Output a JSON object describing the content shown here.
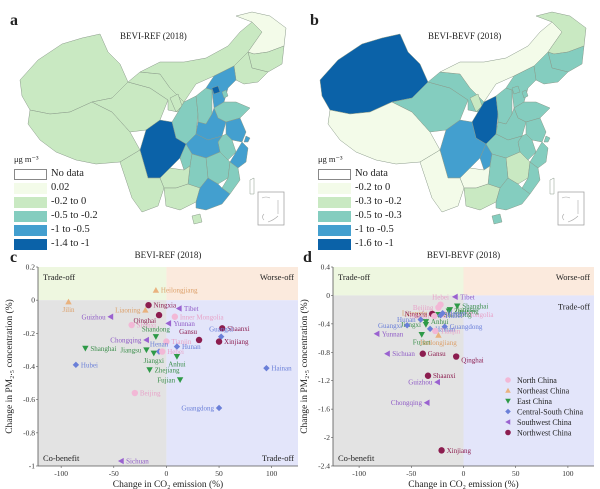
{
  "panels": {
    "a": {
      "letter": "a",
      "title": "BEVI-REF (2018)"
    },
    "b": {
      "letter": "b",
      "title": "BEVI-BEVF (2018)"
    },
    "c": {
      "letter": "c"
    },
    "d": {
      "letter": "d"
    }
  },
  "map_a": {
    "unit": "μg m⁻³",
    "legend": [
      {
        "label": "No data",
        "color": "#ffffff"
      },
      {
        "label": "0.02",
        "color": "#f3fbe9"
      },
      {
        "label": "-0.2 to 0",
        "color": "#c9e9c2"
      },
      {
        "label": "-0.5 to -0.2",
        "color": "#84cdbf"
      },
      {
        "label": "-1 to -0.5",
        "color": "#439fcf"
      },
      {
        "label": "-1.4 to -1",
        "color": "#0b62a8"
      }
    ]
  },
  "map_b": {
    "unit": "μg m⁻³",
    "legend": [
      {
        "label": "No data",
        "color": "#ffffff"
      },
      {
        "label": "-0.2 to 0",
        "color": "#f3fbe9"
      },
      {
        "label": "-0.3 to -0.2",
        "color": "#c9e9c2"
      },
      {
        "label": "-0.5 to -0.3",
        "color": "#84cdbf"
      },
      {
        "label": "-1 to -0.5",
        "color": "#439fcf"
      },
      {
        "label": "-1.6 to -1",
        "color": "#0b62a8"
      }
    ]
  },
  "chart_data": [
    {
      "type": "scatter",
      "title": "BEVI-REF (2018)",
      "xlabel": "Change in CO₂ emission (%)",
      "ylabel": "Change in PM₂.₅ concentration (%)",
      "xlim": [
        -122,
        125
      ],
      "ylim": [
        -1,
        0.2
      ],
      "xticks": [
        -100,
        -50,
        0,
        50,
        100
      ],
      "yticks": [
        0.2,
        0,
        -0.2,
        -0.4,
        -0.6,
        -0.8,
        -1
      ],
      "ytick_labels": [
        "0.2",
        "0",
        "-0.2",
        "-0.4",
        "-0.6",
        "-0.8",
        "-1"
      ],
      "quadrants": {
        "top_left": "Trade-off",
        "top_right": "Worse-off",
        "bottom_left": "Co-benefit",
        "bottom_right": "Trade-off"
      },
      "points": [
        {
          "name": "Heilongjiang",
          "region": "Northeast China",
          "x": -10,
          "y": 0.06,
          "label_side": "right"
        },
        {
          "name": "Jilin",
          "region": "Northeast China",
          "x": -93,
          "y": -0.01,
          "label_side": "below"
        },
        {
          "name": "Liaoning",
          "region": "Northeast China",
          "x": -20,
          "y": -0.06,
          "label_side": "left"
        },
        {
          "name": "Ningxia",
          "region": "Northwest China",
          "x": -17,
          "y": -0.03,
          "label_side": "right"
        },
        {
          "name": "Qinghai",
          "region": "Northwest China",
          "x": -7,
          "y": -0.09,
          "label_side": "left-below"
        },
        {
          "name": "Tibet",
          "region": "Southwest China",
          "x": 12,
          "y": -0.05,
          "label_side": "right"
        },
        {
          "name": "Inner Mongolia",
          "region": "North China",
          "x": 8,
          "y": -0.1,
          "label_side": "right"
        },
        {
          "name": "Guizhou",
          "region": "Southwest China",
          "x": -53,
          "y": -0.1,
          "label_side": "left"
        },
        {
          "name": "Yunnan",
          "region": "Southwest China",
          "x": 2,
          "y": -0.14,
          "label_side": "right"
        },
        {
          "name": "Shanxi",
          "region": "North China",
          "x": -33,
          "y": -0.15,
          "label_side": "right"
        },
        {
          "name": "Shaanxi",
          "region": "Northwest China",
          "x": 53,
          "y": -0.17,
          "label_side": "right"
        },
        {
          "name": "Shandong",
          "region": "East China",
          "x": -10,
          "y": -0.22,
          "label_side": "above"
        },
        {
          "name": "Gansu",
          "region": "Northwest China",
          "x": 31,
          "y": -0.24,
          "label_side": "above-left"
        },
        {
          "name": "Guangxi",
          "region": "Central-South China",
          "x": 52,
          "y": -0.22,
          "label_side": "above"
        },
        {
          "name": "Chongqing",
          "region": "Southwest China",
          "x": -19,
          "y": -0.24,
          "label_side": "left"
        },
        {
          "name": "Xinjiang",
          "region": "Northwest China",
          "x": 50,
          "y": -0.25,
          "label_side": "right"
        },
        {
          "name": "Tianjin",
          "region": "North China",
          "x": 0,
          "y": -0.25,
          "label_side": "right"
        },
        {
          "name": "Henan",
          "region": "Central-South China",
          "x": -7,
          "y": -0.31,
          "label_side": "above"
        },
        {
          "name": "Hunan",
          "region": "Central-South China",
          "x": 10,
          "y": -0.28,
          "label_side": "right"
        },
        {
          "name": "Shanghai",
          "region": "East China",
          "x": -77,
          "y": -0.29,
          "label_side": "right"
        },
        {
          "name": "Jiangsu",
          "region": "East China",
          "x": -19,
          "y": -0.3,
          "label_side": "left"
        },
        {
          "name": "Jiangxi",
          "region": "East China",
          "x": -12,
          "y": -0.32,
          "label_side": "below"
        },
        {
          "name": "Hebei",
          "region": "North China",
          "x": -4,
          "y": -0.31,
          "label_side": "right"
        },
        {
          "name": "Anhui",
          "region": "East China",
          "x": 10,
          "y": -0.34,
          "label_side": "below"
        },
        {
          "name": "Hubei",
          "region": "Central-South China",
          "x": -86,
          "y": -0.39,
          "label_side": "right"
        },
        {
          "name": "Hainan",
          "region": "Central-South China",
          "x": 95,
          "y": -0.41,
          "label_side": "right"
        },
        {
          "name": "Zhejiang",
          "region": "East China",
          "x": -16,
          "y": -0.42,
          "label_side": "right"
        },
        {
          "name": "Fujian",
          "region": "East China",
          "x": 13,
          "y": -0.48,
          "label_side": "left"
        },
        {
          "name": "Beijing",
          "region": "North China",
          "x": -30,
          "y": -0.56,
          "label_side": "right"
        },
        {
          "name": "Guangdong",
          "region": "Central-South China",
          "x": 50,
          "y": -0.65,
          "label_side": "left"
        },
        {
          "name": "Sichuan",
          "region": "Southwest China",
          "x": -43,
          "y": -0.97,
          "label_side": "right"
        }
      ]
    },
    {
      "type": "scatter",
      "title": "BEVI-BEVF (2018)",
      "xlabel": "Change in CO₂ emission (%)",
      "ylabel": "Change in PM₂.₅ concentration (%)",
      "xlim": [
        -125,
        125
      ],
      "ylim": [
        -2.4,
        0.4
      ],
      "xticks": [
        -100,
        -50,
        0,
        50,
        100
      ],
      "yticks": [
        0.4,
        0,
        -0.4,
        -0.8,
        -1.2,
        -1.6,
        -2,
        -2.4
      ],
      "ytick_labels": [
        "0.4",
        "0",
        "-0.4",
        "-0.8",
        "-1.2",
        "-1.6",
        "-2",
        "-2.4"
      ],
      "quadrants": {
        "top_left": "Trade-off",
        "top_right": "Worse-off",
        "bottom_left": "Co-benefit",
        "bottom_right": "Trade-off"
      },
      "legend_position": "bottom-right",
      "points": [
        {
          "name": "Tibet",
          "region": "Southwest China",
          "x": -8,
          "y": -0.02,
          "label_side": "right"
        },
        {
          "name": "Hebei",
          "region": "North China",
          "x": -22,
          "y": -0.13,
          "label_side": "above"
        },
        {
          "name": "Shanghai",
          "region": "East China",
          "x": -6,
          "y": -0.15,
          "label_side": "right"
        },
        {
          "name": "Beijing",
          "region": "North China",
          "x": -24,
          "y": -0.17,
          "label_side": "left"
        },
        {
          "name": "Jiangsu",
          "region": "East China",
          "x": -13,
          "y": -0.2,
          "label_side": "right"
        },
        {
          "name": "Zhejiang",
          "region": "East China",
          "x": -14,
          "y": -0.22,
          "label_side": "right"
        },
        {
          "name": "Liaoning",
          "region": "Northeast China",
          "x": -30,
          "y": -0.25,
          "label_side": "left"
        },
        {
          "name": "Ningxia",
          "region": "Northwest China",
          "x": -30,
          "y": -0.26,
          "label_side": "left"
        },
        {
          "name": "Inner Mongolia",
          "region": "North China",
          "x": -18,
          "y": -0.27,
          "label_side": "right"
        },
        {
          "name": "Shandong",
          "region": "East China",
          "x": -24,
          "y": -0.27,
          "label_side": "right"
        },
        {
          "name": "Henan",
          "region": "Central-South China",
          "x": -20,
          "y": -0.25,
          "label_side": "right"
        },
        {
          "name": "Hubei",
          "region": "Central-South China",
          "x": -22,
          "y": -0.28,
          "label_side": "right"
        },
        {
          "name": "Shanxi",
          "region": "North China",
          "x": -28,
          "y": -0.29,
          "label_side": "left"
        },
        {
          "name": "Hunan",
          "region": "Central-South China",
          "x": -41,
          "y": -0.34,
          "label_side": "left"
        },
        {
          "name": "Anhui",
          "region": "East China",
          "x": -36,
          "y": -0.37,
          "label_side": "right"
        },
        {
          "name": "Jiangxi",
          "region": "East China",
          "x": -36,
          "y": -0.41,
          "label_side": "left"
        },
        {
          "name": "Guangxi",
          "region": "Central-South China",
          "x": -54,
          "y": -0.42,
          "label_side": "left"
        },
        {
          "name": "Guangdong",
          "region": "Central-South China",
          "x": -18,
          "y": -0.44,
          "label_side": "right"
        },
        {
          "name": "Hainan",
          "region": "Central-South China",
          "x": -32,
          "y": -0.47,
          "label_side": "right"
        },
        {
          "name": "Tianjin",
          "region": "North China",
          "x": -27,
          "y": -0.5,
          "label_side": "right"
        },
        {
          "name": "Yunnan",
          "region": "Southwest China",
          "x": -83,
          "y": -0.54,
          "label_side": "right"
        },
        {
          "name": "Fujian",
          "region": "East China",
          "x": -40,
          "y": -0.55,
          "label_side": "below"
        },
        {
          "name": "Heilongjiang",
          "region": "Northeast China",
          "x": -24,
          "y": -0.56,
          "label_side": "below"
        },
        {
          "name": "Sichuan",
          "region": "Southwest China",
          "x": -73,
          "y": -0.82,
          "label_side": "right"
        },
        {
          "name": "Gansu",
          "region": "Northwest China",
          "x": -39,
          "y": -0.82,
          "label_side": "right"
        },
        {
          "name": "Qinghai",
          "region": "Northwest China",
          "x": -7,
          "y": -0.86,
          "label_side": "right-below"
        },
        {
          "name": "Shaanxi",
          "region": "Northwest China",
          "x": -34,
          "y": -1.13,
          "label_side": "right"
        },
        {
          "name": "Guizhou",
          "region": "Southwest China",
          "x": -25,
          "y": -1.22,
          "label_side": "left"
        },
        {
          "name": "Chongqing",
          "region": "Southwest China",
          "x": -35,
          "y": -1.51,
          "label_side": "left"
        },
        {
          "name": "Xinjiang",
          "region": "Northwest China",
          "x": -21,
          "y": -2.18,
          "label_side": "right"
        }
      ]
    }
  ],
  "regions": [
    {
      "name": "North China",
      "marker": "circle",
      "color": "#f2b8d6",
      "label_color": "#e7a3c8"
    },
    {
      "name": "Northeast China",
      "marker": "triangle-up",
      "color": "#e9b27e",
      "label_color": "#dca06a"
    },
    {
      "name": "East China",
      "marker": "triangle-down",
      "color": "#2e9a47",
      "label_color": "#3c8f4c"
    },
    {
      "name": "Central-South China",
      "marker": "diamond",
      "color": "#6a7fd8",
      "label_color": "#6a7fd8"
    },
    {
      "name": "Southwest China",
      "marker": "triangle-left",
      "color": "#9a62d0",
      "label_color": "#8f5bc6"
    },
    {
      "name": "Northwest China",
      "marker": "circle",
      "color": "#8c1d4f",
      "label_color": "#8c1d4f"
    }
  ],
  "quadrant_colors": {
    "top_left": "#eef7e0",
    "top_right": "#fbeadd",
    "bottom_left": "#e3e3e3",
    "bottom_right": "#e3e5fa"
  }
}
